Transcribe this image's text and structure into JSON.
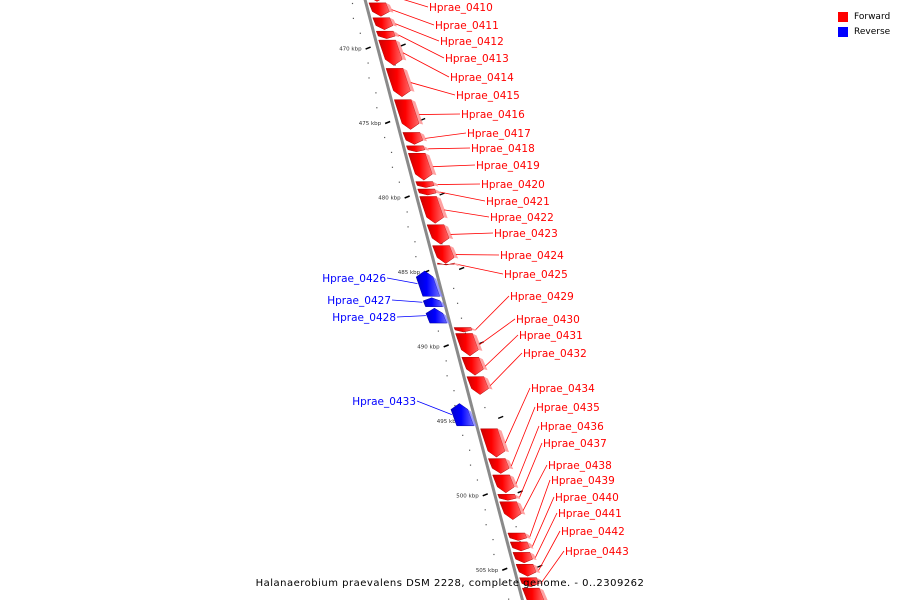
{
  "legend": [
    {
      "label": "Forward",
      "color": "#ff0000"
    },
    {
      "label": "Reverse",
      "color": "#0000ff"
    }
  ],
  "caption": "Halanaerobium praevalens DSM 2228, complete genome. - 0..2309262",
  "colors": {
    "forward": "#ff0000",
    "reverse": "#0000ff",
    "axis": "#888888",
    "tick": "#000000"
  },
  "scale": {
    "start_kbp": 466.0,
    "end_kbp": 507.5,
    "labels": [
      {
        "kbp": 470,
        "text": "470 kbp"
      },
      {
        "kbp": 475,
        "text": "475 kbp"
      },
      {
        "kbp": 480,
        "text": "480 kbp"
      },
      {
        "kbp": 485,
        "text": "485 kbp"
      },
      {
        "kbp": 490,
        "text": "490 kbp"
      },
      {
        "kbp": 495,
        "text": "495 kbp"
      },
      {
        "kbp": 500,
        "text": "500 kbp"
      },
      {
        "kbp": 505,
        "text": "505 kbp"
      }
    ]
  },
  "genes": [
    {
      "name": "Hprae_0410",
      "strand": "forward",
      "start": 466.0,
      "end": 466.9
    },
    {
      "name": "Hprae_0411",
      "strand": "forward",
      "start": 467.0,
      "end": 467.9
    },
    {
      "name": "Hprae_0412",
      "strand": "forward",
      "start": 468.0,
      "end": 468.8
    },
    {
      "name": "Hprae_0413",
      "strand": "forward",
      "start": 468.9,
      "end": 469.4
    },
    {
      "name": "Hprae_0414",
      "strand": "forward",
      "start": 469.5,
      "end": 471.2
    },
    {
      "name": "Hprae_0415",
      "strand": "forward",
      "start": 471.4,
      "end": 473.3
    },
    {
      "name": "Hprae_0416",
      "strand": "forward",
      "start": 473.5,
      "end": 475.5
    },
    {
      "name": "Hprae_0417",
      "strand": "forward",
      "start": 475.7,
      "end": 476.5
    },
    {
      "name": "Hprae_0418",
      "strand": "forward",
      "start": 476.6,
      "end": 477.0
    },
    {
      "name": "Hprae_0419",
      "strand": "forward",
      "start": 477.1,
      "end": 478.9
    },
    {
      "name": "Hprae_0420",
      "strand": "forward",
      "start": 479.0,
      "end": 479.4
    },
    {
      "name": "Hprae_0421",
      "strand": "forward",
      "start": 479.5,
      "end": 479.9
    },
    {
      "name": "Hprae_0422",
      "strand": "forward",
      "start": 480.0,
      "end": 481.8
    },
    {
      "name": "Hprae_0423",
      "strand": "forward",
      "start": 481.9,
      "end": 483.2
    },
    {
      "name": "Hprae_0424",
      "strand": "forward",
      "start": 483.3,
      "end": 484.5
    },
    {
      "name": "Hprae_0425",
      "strand": "forward",
      "start": 484.55,
      "end": 484.6
    },
    {
      "name": "Hprae_0426",
      "strand": "reverse",
      "start": 485.0,
      "end": 486.7
    },
    {
      "name": "Hprae_0427",
      "strand": "reverse",
      "start": 486.8,
      "end": 487.4
    },
    {
      "name": "Hprae_0428",
      "strand": "reverse",
      "start": 487.5,
      "end": 488.5
    },
    {
      "name": "Hprae_0429",
      "strand": "forward",
      "start": 488.8,
      "end": 489.1
    },
    {
      "name": "Hprae_0430",
      "strand": "forward",
      "start": 489.2,
      "end": 490.7
    },
    {
      "name": "Hprae_0431",
      "strand": "forward",
      "start": 490.8,
      "end": 492.0
    },
    {
      "name": "Hprae_0432",
      "strand": "forward",
      "start": 492.1,
      "end": 493.3
    },
    {
      "name": "Hprae_0433",
      "strand": "reverse",
      "start": 493.9,
      "end": 495.4
    },
    {
      "name": "Hprae_0434",
      "strand": "forward",
      "start": 495.6,
      "end": 497.5
    },
    {
      "name": "Hprae_0435",
      "strand": "forward",
      "start": 497.6,
      "end": 498.6
    },
    {
      "name": "Hprae_0436",
      "strand": "forward",
      "start": 498.7,
      "end": 499.9
    },
    {
      "name": "Hprae_0437",
      "strand": "forward",
      "start": 500.0,
      "end": 500.4
    },
    {
      "name": "Hprae_0438",
      "strand": "forward",
      "start": 500.5,
      "end": 501.7
    },
    {
      "name": "Hprae_0439",
      "strand": "forward",
      "start": 502.6,
      "end": 503.1
    },
    {
      "name": "Hprae_0440",
      "strand": "forward",
      "start": 503.2,
      "end": 503.8
    },
    {
      "name": "Hprae_0441",
      "strand": "forward",
      "start": 503.9,
      "end": 504.6
    },
    {
      "name": "Hprae_0442",
      "strand": "forward",
      "start": 504.7,
      "end": 505.5
    },
    {
      "name": "Hprae_0443",
      "strand": "forward",
      "start": 505.6,
      "end": 506.2
    },
    {
      "name": "",
      "strand": "forward",
      "start": 506.3,
      "end": 507.5
    }
  ]
}
